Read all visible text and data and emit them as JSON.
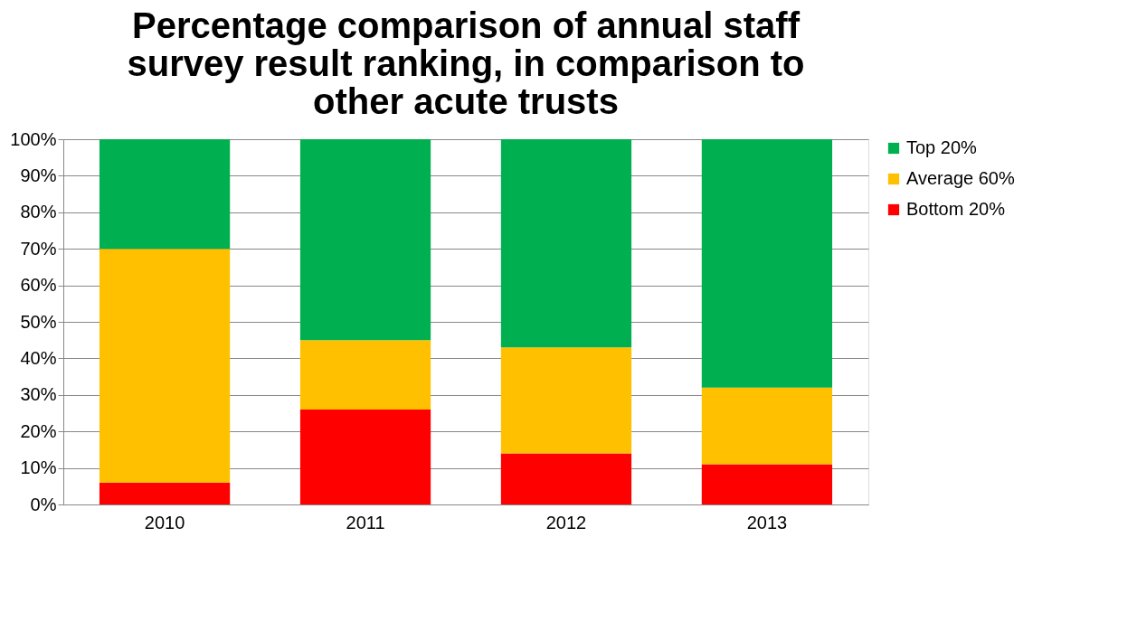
{
  "chart_data": {
    "type": "bar",
    "title": "Percentage comparison of annual staff survey result ranking, in comparison to other acute trusts",
    "categories": [
      "2010",
      "2011",
      "2012",
      "2013"
    ],
    "stacked": true,
    "series": [
      {
        "name": "Bottom 20%",
        "color": "#ff0000",
        "values": [
          6,
          26,
          14,
          11
        ]
      },
      {
        "name": "Average 60%",
        "color": "#ffc000",
        "values": [
          64,
          19,
          29,
          21
        ]
      },
      {
        "name": "Top 20%",
        "color": "#00b050",
        "values": [
          30,
          55,
          57,
          68
        ]
      }
    ],
    "ylim": [
      0,
      100
    ],
    "yticks": [
      {
        "value": 0,
        "label": "0%"
      },
      {
        "value": 10,
        "label": "10%"
      },
      {
        "value": 20,
        "label": "20%"
      },
      {
        "value": 30,
        "label": "30%"
      },
      {
        "value": 40,
        "label": "40%"
      },
      {
        "value": 50,
        "label": "50%"
      },
      {
        "value": 60,
        "label": "60%"
      },
      {
        "value": 70,
        "label": "70%"
      },
      {
        "value": 80,
        "label": "80%"
      },
      {
        "value": 90,
        "label": "90%"
      },
      {
        "value": 100,
        "label": "100%"
      }
    ],
    "grid": "y",
    "legend": "right"
  }
}
